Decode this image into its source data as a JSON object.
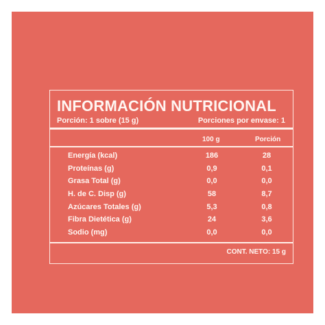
{
  "label": {
    "title": "INFORMACIÓN NUTRICIONAL",
    "portion": "Porción: 1 sobre (15 g)",
    "portions_per_pack": "Porciones por envase: 1",
    "col_100g": "100 g",
    "col_portion": "Porción",
    "rows": [
      {
        "name": "Energía (kcal)",
        "per100": "186",
        "perPortion": "28"
      },
      {
        "name": "Proteínas (g)",
        "per100": "0,9",
        "perPortion": "0,1"
      },
      {
        "name": "Grasa Total (g)",
        "per100": "0,0",
        "perPortion": "0,0"
      },
      {
        "name": "H. de C. Disp (g)",
        "per100": "58",
        "perPortion": "8,7"
      },
      {
        "name": "Azúcares Totales (g)",
        "per100": "5,3",
        "perPortion": "0,8"
      },
      {
        "name": "Fibra Dietética (g)",
        "per100": "24",
        "perPortion": "3,6"
      },
      {
        "name": "Sodio (mg)",
        "per100": "0,0",
        "perPortion": "0,0"
      }
    ],
    "net_content": "CONT. NETO: 15 g"
  },
  "colors": {
    "background": "#e5685d",
    "text": "#fff6f2"
  }
}
